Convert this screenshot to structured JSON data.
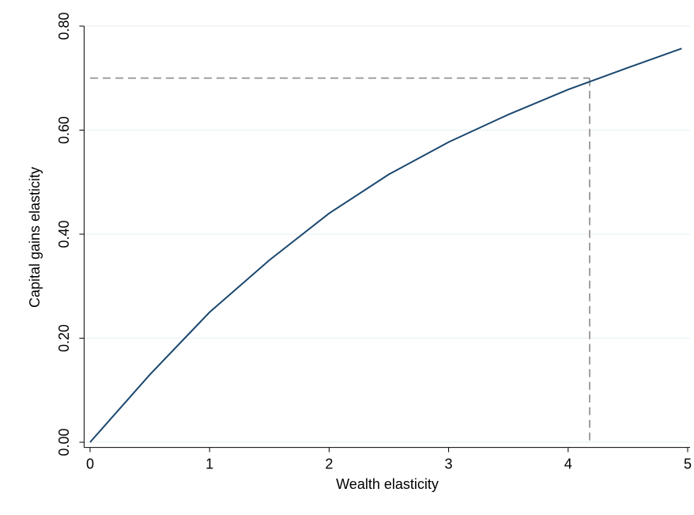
{
  "chart_data": {
    "type": "line",
    "x_label": "Wealth elasticity",
    "y_label": "Capital gains elasticity",
    "x": [
      0,
      0.5,
      1,
      1.5,
      2,
      2.5,
      3,
      3.5,
      4,
      4.5,
      4.95
    ],
    "series": [
      {
        "color": "#1a476f",
        "values": [
          0,
          0.13,
          0.25,
          0.35,
          0.44,
          0.515,
          0.577,
          0.63,
          0.678,
          0.72,
          0.757
        ]
      }
    ],
    "reference_lines": {
      "x": 4.18,
      "y": 0.7,
      "color": "#a0a0a0"
    },
    "xlim": [
      -0.05,
      5.02
    ],
    "ylim": [
      -0.01,
      0.8
    ],
    "xticks": [
      0,
      1,
      2,
      3,
      4,
      5
    ],
    "yticks": [
      {
        "value": 0,
        "label": "0.00"
      },
      {
        "value": 0.2,
        "label": "0.20"
      },
      {
        "value": 0.4,
        "label": "0.40"
      },
      {
        "value": 0.6,
        "label": "0.60"
      },
      {
        "value": 0.8,
        "label": "0.80"
      }
    ],
    "grid": true
  }
}
